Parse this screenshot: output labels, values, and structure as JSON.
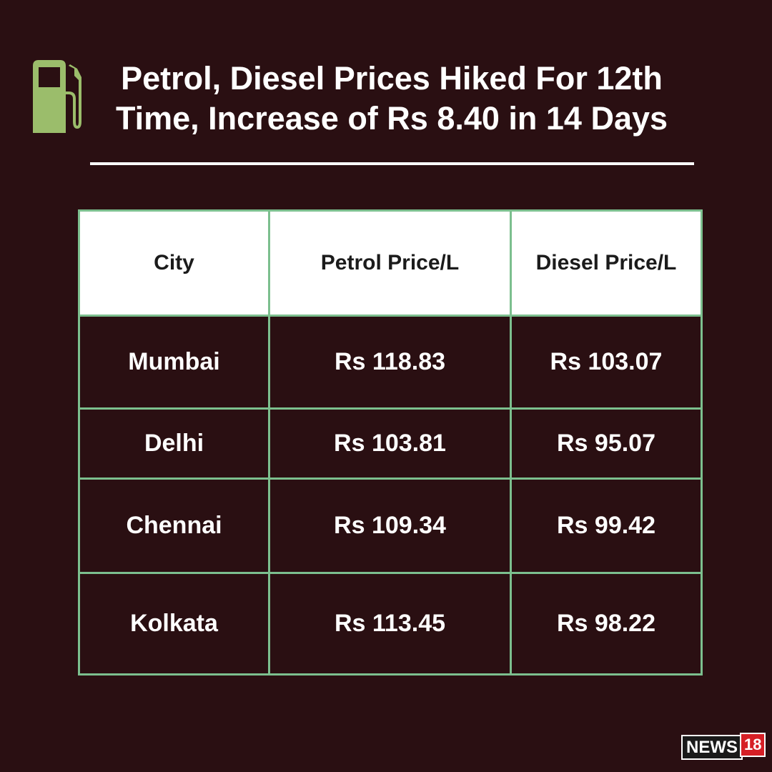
{
  "header": {
    "title_lines": [
      "Petrol, Diesel Prices Hiked For 12th",
      "Time, Increase of Rs 8.40 in 14 Days"
    ]
  },
  "table": {
    "columns": [
      "City",
      "Petrol Price/L",
      "Diesel Price/L"
    ],
    "rows": [
      [
        "Mumbai",
        "Rs 118.83",
        "Rs 103.07"
      ],
      [
        "Delhi",
        "Rs 103.81",
        "Rs 95.07"
      ],
      [
        "Chennai",
        "Rs 109.34",
        "Rs 99.42"
      ],
      [
        "Kolkata",
        "Rs 113.45",
        "Rs 98.22"
      ]
    ]
  },
  "logo": {
    "name": "NEWS",
    "number": "18"
  }
}
